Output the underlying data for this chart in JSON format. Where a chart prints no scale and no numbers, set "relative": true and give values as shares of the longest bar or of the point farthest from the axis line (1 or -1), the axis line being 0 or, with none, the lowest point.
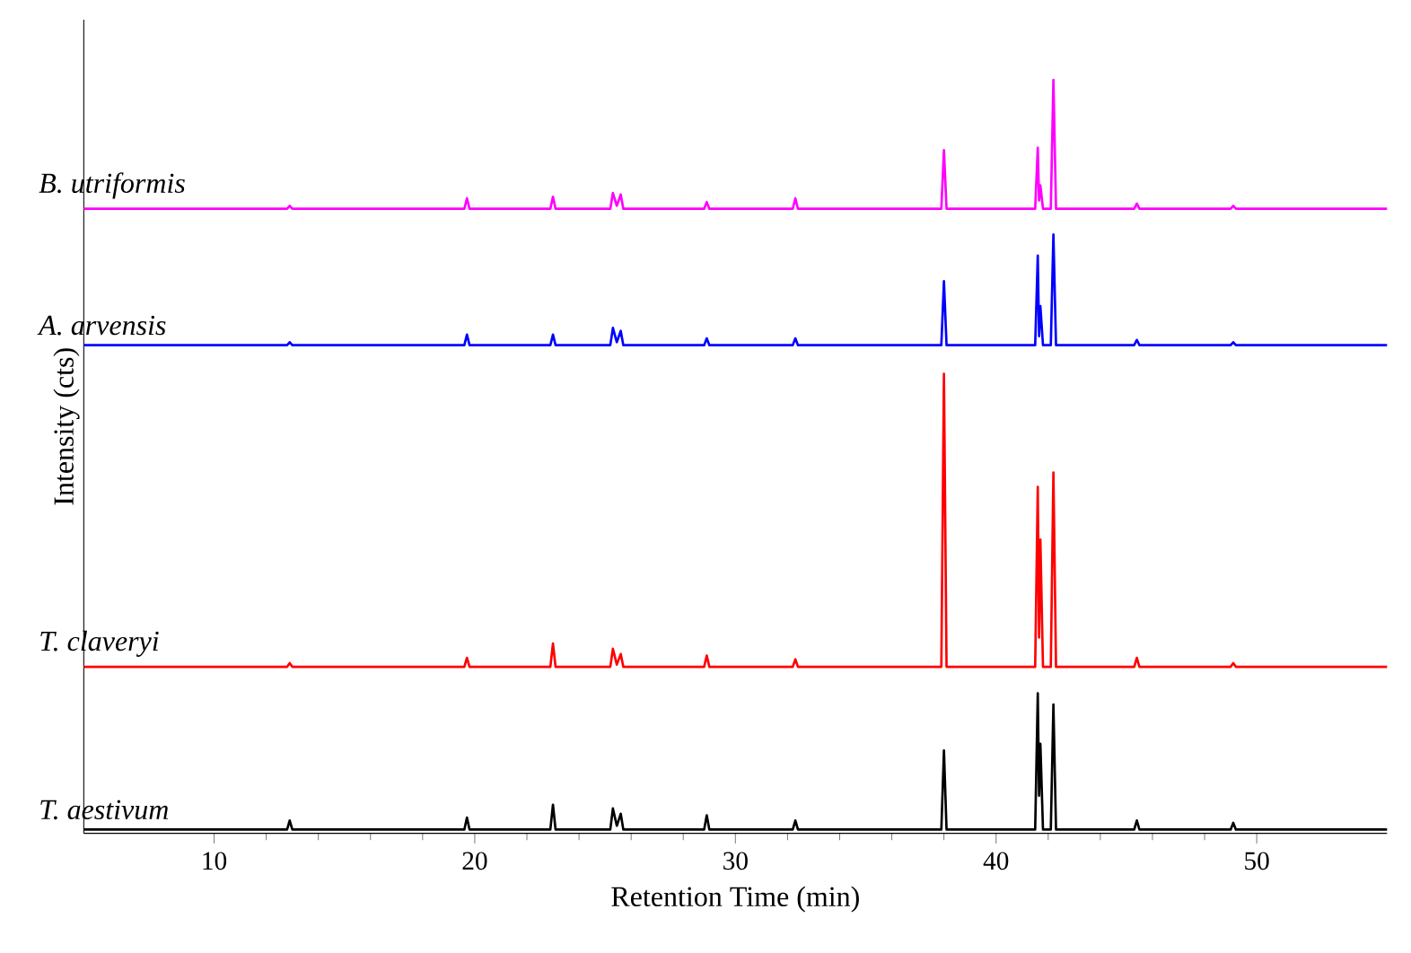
{
  "chart_data": {
    "type": "line",
    "relative": true,
    "xlabel": "Retention Time (min)",
    "ylabel": "Intensity (cts)",
    "xlim": [
      5,
      55
    ],
    "xticks": [
      10,
      20,
      30,
      40,
      50
    ],
    "grid": false,
    "marker": "none",
    "line_style": "solid",
    "x": [
      5,
      12.8,
      12.9,
      13,
      19.6,
      19.7,
      19.8,
      22.9,
      23.0,
      23.1,
      25.2,
      25.3,
      25.45,
      25.6,
      25.7,
      28.8,
      28.9,
      29.0,
      32.2,
      32.3,
      32.4,
      37.9,
      38.0,
      38.1,
      41.5,
      41.6,
      41.65,
      41.7,
      41.8,
      42.1,
      42.2,
      42.3,
      45.3,
      45.4,
      45.5,
      49.0,
      49.1,
      49.2,
      55
    ],
    "series": [
      {
        "name": "B. utriformis",
        "color": "#ff00ff",
        "values": [
          0.829,
          0.829,
          0.833,
          0.829,
          0.829,
          0.843,
          0.829,
          0.829,
          0.845,
          0.829,
          0.829,
          0.85,
          0.833,
          0.848,
          0.829,
          0.829,
          0.838,
          0.829,
          0.829,
          0.843,
          0.829,
          0.829,
          0.907,
          0.829,
          0.829,
          0.91,
          0.84,
          0.86,
          0.829,
          0.829,
          1.0,
          0.829,
          0.829,
          0.836,
          0.829,
          0.829,
          0.833,
          0.829,
          0.829
        ]
      },
      {
        "name": "A. arvensis",
        "color": "#0000ff",
        "values": [
          0.648,
          0.648,
          0.652,
          0.648,
          0.648,
          0.662,
          0.648,
          0.648,
          0.662,
          0.648,
          0.648,
          0.671,
          0.652,
          0.667,
          0.648,
          0.648,
          0.657,
          0.648,
          0.648,
          0.657,
          0.648,
          0.648,
          0.733,
          0.648,
          0.648,
          0.767,
          0.66,
          0.7,
          0.648,
          0.648,
          0.795,
          0.648,
          0.648,
          0.655,
          0.648,
          0.648,
          0.652,
          0.648,
          0.648
        ]
      },
      {
        "name": "T. claveryi",
        "color": "#ff0000",
        "values": [
          0.221,
          0.221,
          0.226,
          0.221,
          0.221,
          0.233,
          0.221,
          0.221,
          0.252,
          0.221,
          0.221,
          0.245,
          0.224,
          0.238,
          0.221,
          0.221,
          0.236,
          0.221,
          0.221,
          0.231,
          0.221,
          0.221,
          0.61,
          0.221,
          0.221,
          0.46,
          0.26,
          0.39,
          0.221,
          0.221,
          0.479,
          0.221,
          0.221,
          0.233,
          0.221,
          0.221,
          0.226,
          0.221,
          0.221
        ]
      },
      {
        "name": "T. aestivum",
        "color": "#000000",
        "values": [
          0.005,
          0.005,
          0.017,
          0.005,
          0.005,
          0.021,
          0.005,
          0.005,
          0.038,
          0.005,
          0.005,
          0.033,
          0.01,
          0.026,
          0.005,
          0.005,
          0.024,
          0.005,
          0.005,
          0.017,
          0.005,
          0.005,
          0.11,
          0.005,
          0.005,
          0.186,
          0.05,
          0.119,
          0.005,
          0.005,
          0.171,
          0.005,
          0.005,
          0.017,
          0.005,
          0.005,
          0.014,
          0.005,
          0.005
        ]
      }
    ]
  }
}
